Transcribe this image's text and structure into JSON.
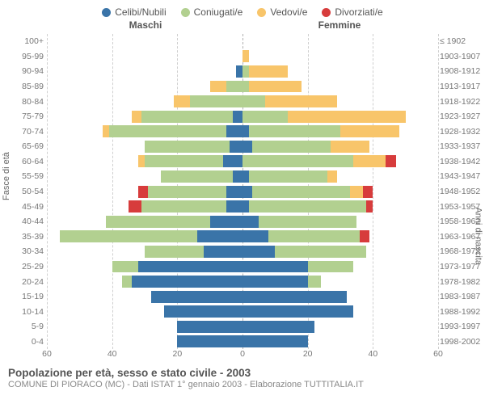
{
  "legend": [
    {
      "label": "Celibi/Nubili",
      "color": "#3a74a8"
    },
    {
      "label": "Coniugati/e",
      "color": "#b2d090"
    },
    {
      "label": "Vedovi/e",
      "color": "#f8c56a"
    },
    {
      "label": "Divorziati/e",
      "color": "#d73c3c"
    }
  ],
  "headers": {
    "male": "Maschi",
    "female": "Femmine"
  },
  "axis_titles": {
    "left": "Fasce di età",
    "right": "Anni di nascita"
  },
  "x_axis": {
    "max": 60,
    "ticks": [
      60,
      40,
      20,
      0,
      20,
      40,
      60
    ]
  },
  "grid_color": "#cfcfcf",
  "center_grid_color": "#b0b0b0",
  "background": "#ffffff",
  "label_color": "#777",
  "label_fontsize": 10.5,
  "footer": {
    "title": "Popolazione per età, sesso e stato civile - 2003",
    "subtitle": "COMUNE DI PIORACO (MC) - Dati ISTAT 1° gennaio 2003 - Elaborazione TUTTITALIA.IT"
  },
  "rows": [
    {
      "age": "100+",
      "year": "≤ 1902",
      "m": [
        0,
        0,
        0,
        0
      ],
      "f": [
        0,
        0,
        0,
        0
      ]
    },
    {
      "age": "95-99",
      "year": "1903-1907",
      "m": [
        0,
        0,
        0,
        0
      ],
      "f": [
        0,
        0,
        2,
        0
      ]
    },
    {
      "age": "90-94",
      "year": "1908-1912",
      "m": [
        2,
        0,
        0,
        0
      ],
      "f": [
        0,
        2,
        12,
        0
      ]
    },
    {
      "age": "85-89",
      "year": "1913-1917",
      "m": [
        0,
        5,
        5,
        0
      ],
      "f": [
        0,
        2,
        16,
        0
      ]
    },
    {
      "age": "80-84",
      "year": "1918-1922",
      "m": [
        0,
        16,
        5,
        0
      ],
      "f": [
        0,
        7,
        22,
        0
      ]
    },
    {
      "age": "75-79",
      "year": "1923-1927",
      "m": [
        3,
        28,
        3,
        0
      ],
      "f": [
        0,
        14,
        36,
        0
      ]
    },
    {
      "age": "70-74",
      "year": "1928-1932",
      "m": [
        5,
        36,
        2,
        0
      ],
      "f": [
        2,
        28,
        18,
        0
      ]
    },
    {
      "age": "65-69",
      "year": "1933-1937",
      "m": [
        4,
        26,
        0,
        0
      ],
      "f": [
        3,
        24,
        12,
        0
      ]
    },
    {
      "age": "60-64",
      "year": "1938-1942",
      "m": [
        6,
        24,
        2,
        0
      ],
      "f": [
        0,
        34,
        10,
        3
      ]
    },
    {
      "age": "55-59",
      "year": "1943-1947",
      "m": [
        3,
        22,
        0,
        0
      ],
      "f": [
        2,
        24,
        3,
        0
      ]
    },
    {
      "age": "50-54",
      "year": "1948-1952",
      "m": [
        5,
        24,
        0,
        3
      ],
      "f": [
        3,
        30,
        4,
        3
      ]
    },
    {
      "age": "45-49",
      "year": "1953-1957",
      "m": [
        5,
        26,
        0,
        4
      ],
      "f": [
        2,
        36,
        0,
        2
      ]
    },
    {
      "age": "40-44",
      "year": "1958-1962",
      "m": [
        10,
        32,
        0,
        0
      ],
      "f": [
        5,
        30,
        0,
        0
      ]
    },
    {
      "age": "35-39",
      "year": "1963-1967",
      "m": [
        14,
        42,
        0,
        0
      ],
      "f": [
        8,
        28,
        0,
        3
      ]
    },
    {
      "age": "30-34",
      "year": "1968-1972",
      "m": [
        12,
        18,
        0,
        0
      ],
      "f": [
        10,
        28,
        0,
        0
      ]
    },
    {
      "age": "25-29",
      "year": "1973-1977",
      "m": [
        32,
        8,
        0,
        0
      ],
      "f": [
        20,
        14,
        0,
        0
      ]
    },
    {
      "age": "20-24",
      "year": "1978-1982",
      "m": [
        34,
        3,
        0,
        0
      ],
      "f": [
        20,
        4,
        0,
        0
      ]
    },
    {
      "age": "15-19",
      "year": "1983-1987",
      "m": [
        28,
        0,
        0,
        0
      ],
      "f": [
        32,
        0,
        0,
        0
      ]
    },
    {
      "age": "10-14",
      "year": "1988-1992",
      "m": [
        24,
        0,
        0,
        0
      ],
      "f": [
        34,
        0,
        0,
        0
      ]
    },
    {
      "age": "5-9",
      "year": "1993-1997",
      "m": [
        20,
        0,
        0,
        0
      ],
      "f": [
        22,
        0,
        0,
        0
      ]
    },
    {
      "age": "0-4",
      "year": "1998-2002",
      "m": [
        20,
        0,
        0,
        0
      ],
      "f": [
        20,
        0,
        0,
        0
      ]
    }
  ]
}
